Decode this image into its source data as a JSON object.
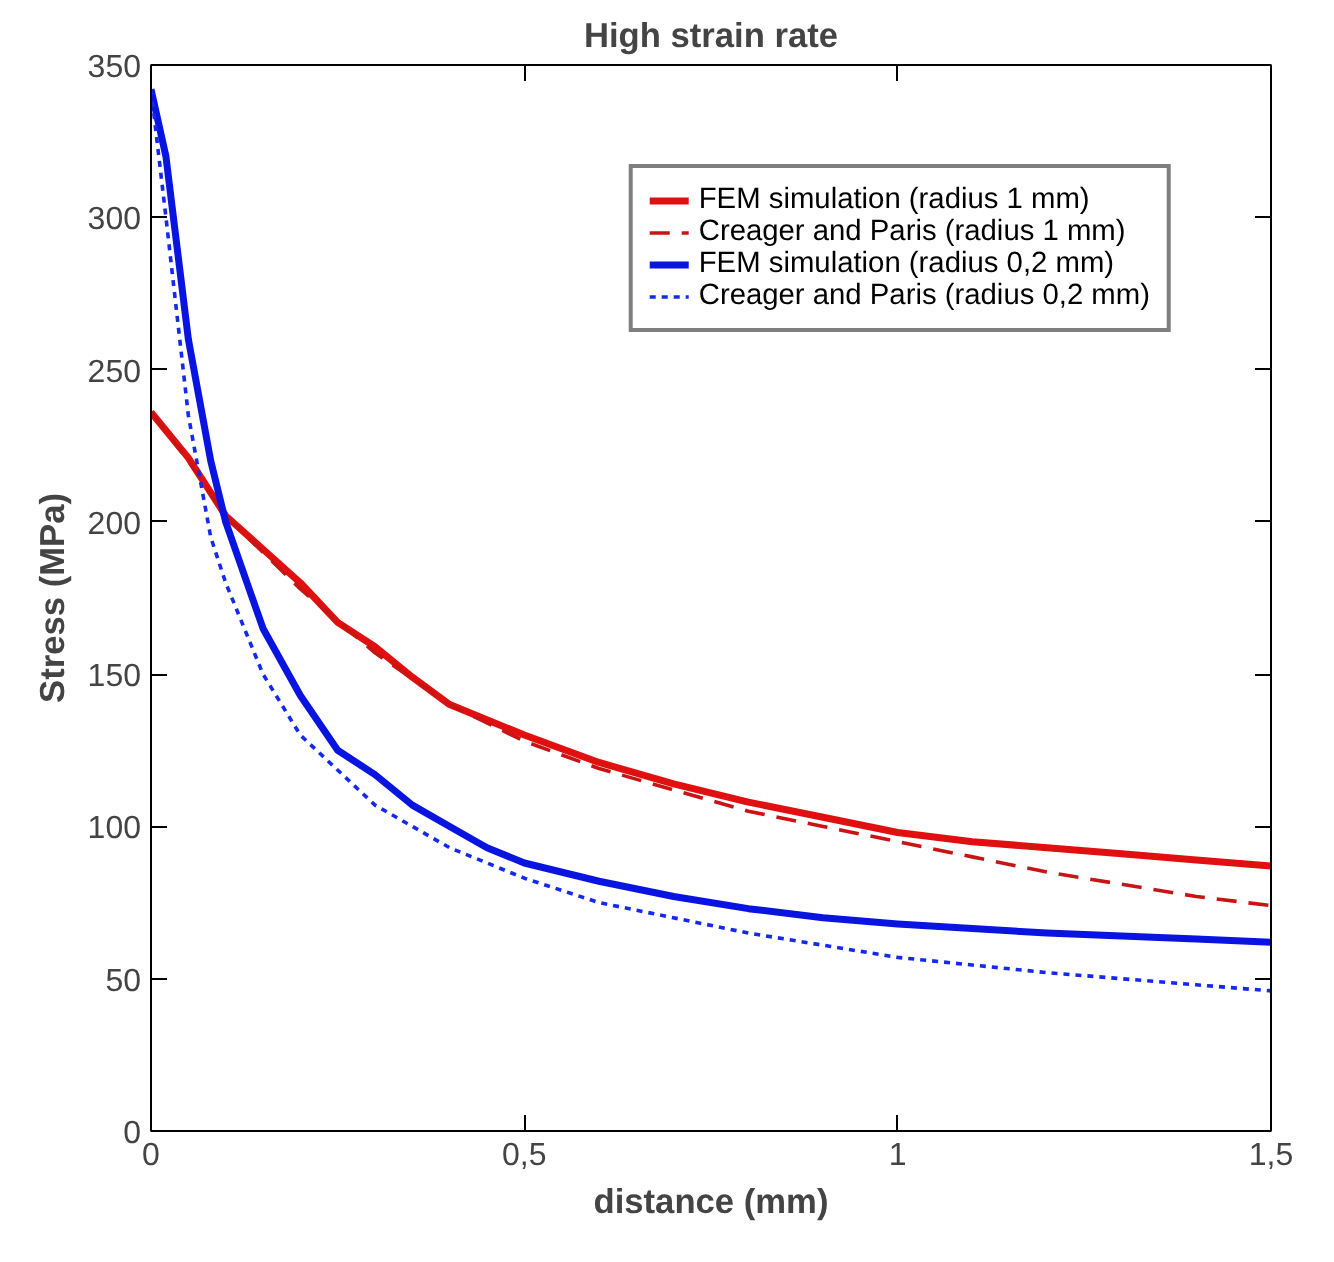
{
  "chart_data": {
    "type": "line",
    "title": "High strain rate",
    "xlabel": "distance (mm)",
    "ylabel": "Stress (MPa)",
    "xlim": [
      0,
      1.5
    ],
    "xticks": [
      0,
      {
        "value": 0.5,
        "label": "0,5"
      },
      1,
      {
        "value": 1.5,
        "label": "1,5"
      }
    ],
    "ylim": [
      0,
      350
    ],
    "yticks": [
      0,
      50,
      100,
      150,
      200,
      250,
      300,
      350
    ],
    "grid": false,
    "legend": "top right",
    "series": [
      {
        "name": "FEM simulation (radius 1 mm)",
        "color": "#e01010",
        "line_style": "solid",
        "x": [
          0,
          0.02,
          0.05,
          0.1,
          0.15,
          0.2,
          0.25,
          0.3,
          0.35,
          0.4,
          0.5,
          0.6,
          0.7,
          0.8,
          0.9,
          1.0,
          1.1,
          1.2,
          1.3,
          1.4,
          1.5
        ],
        "values": [
          236,
          230,
          221,
          202,
          191,
          180,
          167,
          159,
          149,
          140,
          130,
          121,
          114,
          108,
          103,
          98,
          95,
          93,
          91,
          89,
          87
        ]
      },
      {
        "name": "Creager and Paris (radius 1 mm)",
        "color": "#c81414",
        "line_style": "dashed",
        "x": [
          0,
          0.05,
          0.1,
          0.2,
          0.3,
          0.4,
          0.5,
          0.6,
          0.7,
          0.8,
          0.9,
          1.0,
          1.1,
          1.2,
          1.3,
          1.4,
          1.5
        ],
        "values": [
          236,
          220,
          202,
          178,
          157,
          140,
          128,
          119,
          112,
          105,
          100,
          95,
          90,
          85,
          81,
          77,
          74
        ]
      },
      {
        "name": "FEM simulation (radius 0,2 mm)",
        "color": "#0a14e0",
        "line_style": "solid",
        "x": [
          0,
          0.02,
          0.05,
          0.08,
          0.1,
          0.15,
          0.2,
          0.25,
          0.3,
          0.35,
          0.4,
          0.45,
          0.5,
          0.6,
          0.7,
          0.8,
          0.9,
          1.0,
          1.2,
          1.4,
          1.5
        ],
        "values": [
          342,
          320,
          260,
          220,
          200,
          165,
          143,
          125,
          117,
          107,
          100,
          93,
          88,
          82,
          77,
          73,
          70,
          68,
          65,
          63,
          62
        ]
      },
      {
        "name": "Creager and Paris (radius 0,2 mm)",
        "color": "#1428f0",
        "line_style": "dotted",
        "x": [
          0,
          0.02,
          0.05,
          0.08,
          0.1,
          0.15,
          0.2,
          0.3,
          0.4,
          0.5,
          0.6,
          0.8,
          1.0,
          1.2,
          1.4,
          1.5
        ],
        "values": [
          342,
          300,
          235,
          195,
          180,
          150,
          130,
          107,
          93,
          83,
          75,
          65,
          57,
          52,
          48,
          46
        ]
      }
    ]
  }
}
